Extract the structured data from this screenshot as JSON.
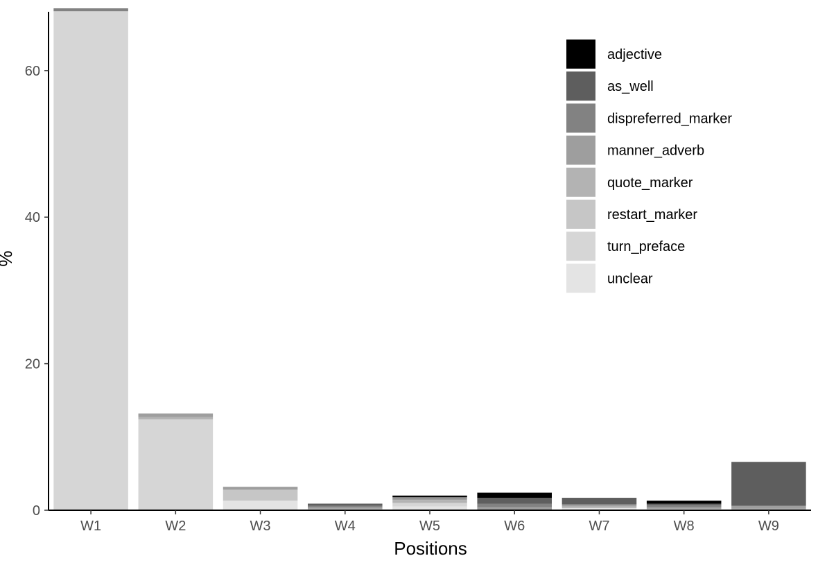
{
  "chart_data": {
    "type": "bar",
    "stacked": true,
    "title": "",
    "xlabel": "Positions",
    "ylabel": "%",
    "categories": [
      "W1",
      "W2",
      "W3",
      "W4",
      "W5",
      "W6",
      "W7",
      "W8",
      "W9"
    ],
    "ylim": [
      0,
      68.5
    ],
    "yticks": [
      0,
      20,
      40,
      60
    ],
    "grid": false,
    "legend_position": "top-right",
    "series": [
      {
        "name": "adjective",
        "color": "#000000",
        "values": [
          0,
          0,
          0,
          0,
          0.2,
          0.7,
          0,
          0.4,
          0
        ]
      },
      {
        "name": "as_well",
        "color": "#5e5e5e",
        "values": [
          0,
          0,
          0,
          0.3,
          0,
          0.8,
          0.9,
          0.2,
          6.0
        ]
      },
      {
        "name": "dispreferred_marker",
        "color": "#828282",
        "values": [
          0.4,
          0,
          0,
          0.2,
          0.2,
          0.5,
          0,
          0.3,
          0
        ]
      },
      {
        "name": "manner_adverb",
        "color": "#9e9e9e",
        "values": [
          0,
          0.5,
          0.4,
          0.2,
          0.2,
          0.4,
          0.3,
          0.2,
          0.4
        ]
      },
      {
        "name": "quote_marker",
        "color": "#b3b3b3",
        "values": [
          0,
          0.3,
          0,
          0,
          0.4,
          0,
          0.2,
          0,
          0.2
        ]
      },
      {
        "name": "restart_marker",
        "color": "#c6c6c6",
        "values": [
          0,
          0,
          1.5,
          0.2,
          0,
          0,
          0,
          0,
          0
        ]
      },
      {
        "name": "turn_preface",
        "color": "#d6d6d6",
        "values": [
          68.1,
          12.4,
          0,
          0,
          0.5,
          0,
          0,
          0.2,
          0
        ]
      },
      {
        "name": "unclear",
        "color": "#e4e4e4",
        "values": [
          0,
          0,
          1.3,
          0,
          0.5,
          0,
          0.3,
          0,
          0
        ]
      }
    ]
  }
}
